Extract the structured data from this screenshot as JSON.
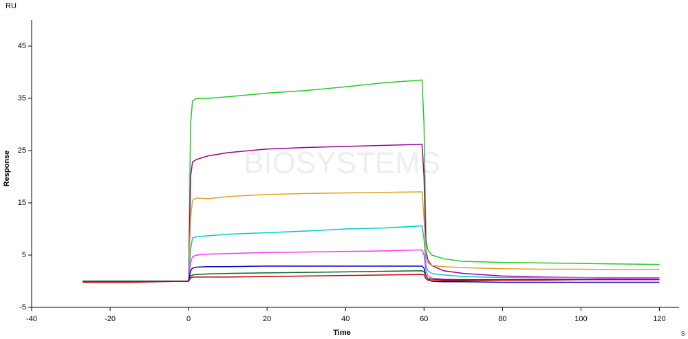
{
  "chart_data": {
    "type": "line",
    "y_unit": "RU",
    "x_unit": "s",
    "ylabel": "Response",
    "xlabel": "Time",
    "watermark": "BIOSYSTEMS",
    "xlim": [
      -40,
      125
    ],
    "xticks": [
      -40,
      -20,
      0,
      20,
      40,
      60,
      80,
      100,
      120
    ],
    "ylim": [
      -5,
      50
    ],
    "yticks": [
      -5,
      5,
      15,
      25,
      35,
      45
    ],
    "x": [
      -27,
      -15,
      -1,
      0,
      0.5,
      1,
      2,
      5,
      10,
      20,
      30,
      40,
      50,
      59.5,
      60,
      60.5,
      61,
      62,
      65,
      70,
      80,
      90,
      100,
      110,
      120
    ],
    "series": [
      {
        "color": "#22cc22",
        "values": [
          0,
          0,
          0,
          0,
          30,
          34.5,
          35,
          35,
          35.3,
          36,
          36.5,
          37.2,
          38,
          38.5,
          30,
          8,
          6,
          5,
          4.3,
          3.8,
          3.6,
          3.5,
          3.4,
          3.3,
          3.2
        ]
      },
      {
        "color": "#990099",
        "values": [
          0,
          0,
          0,
          0,
          20,
          22.8,
          23.3,
          24,
          24.6,
          25.3,
          25.6,
          25.8,
          26,
          26.2,
          20,
          6,
          4,
          3,
          2,
          1.5,
          1,
          0.8,
          0.7,
          0.6,
          0.5
        ]
      },
      {
        "color": "#e0a020",
        "values": [
          0,
          0,
          0,
          0,
          12,
          15.5,
          15.9,
          15.8,
          16.2,
          16.6,
          16.8,
          16.9,
          17,
          17.1,
          12,
          5,
          3.5,
          3,
          2.8,
          2.6,
          2.4,
          2.3,
          2.3,
          2.2,
          2.2
        ]
      },
      {
        "color": "#00cccc",
        "values": [
          0,
          0,
          0,
          0,
          6,
          8.3,
          8.5,
          8.7,
          9,
          9.3,
          9.6,
          10,
          10.2,
          10.6,
          8,
          3,
          2,
          1.5,
          1.2,
          0.9,
          0.7,
          0.7,
          0.7,
          0.7,
          0.7
        ]
      },
      {
        "color": "#ff33ff",
        "values": [
          0,
          0,
          0,
          0,
          3.5,
          4.7,
          5,
          5.2,
          5.3,
          5.5,
          5.6,
          5.7,
          5.8,
          6,
          5,
          2,
          1,
          0.6,
          0.4,
          0.3,
          0.3,
          0.4,
          0.4,
          0.5,
          0.5
        ]
      },
      {
        "color": "#0000cc",
        "values": [
          0,
          0,
          0,
          0,
          2,
          2.5,
          2.7,
          2.8,
          2.8,
          2.9,
          2.9,
          2.9,
          2.9,
          2.9,
          2.5,
          1,
          0.5,
          0,
          -0.1,
          -0.1,
          -0.2,
          -0.2,
          -0.2,
          -0.2,
          -0.2
        ]
      },
      {
        "color": "#006633",
        "values": [
          0,
          0,
          0,
          0,
          1,
          1.2,
          1.3,
          1.4,
          1.5,
          1.6,
          1.7,
          1.8,
          1.9,
          2,
          1.8,
          1,
          0.5,
          0.4,
          0.3,
          0.3,
          0.3,
          0.3,
          0.3,
          0.3,
          0.3
        ]
      },
      {
        "color": "#cc0000",
        "values": [
          -0.2,
          -0.2,
          0,
          0,
          0.6,
          0.8,
          0.8,
          0.8,
          0.8,
          0.9,
          1,
          1.1,
          1.2,
          1.3,
          1.2,
          0.5,
          0.2,
          0.1,
          0.1,
          0.1,
          0.2,
          0.2,
          0.3,
          0.3,
          0.3
        ]
      }
    ]
  }
}
